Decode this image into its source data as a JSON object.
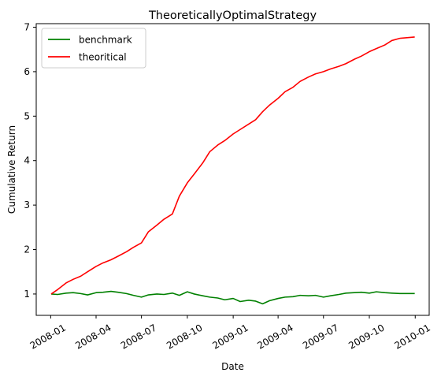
{
  "chart_data": {
    "type": "line",
    "title": "TheoreticallyOptimalStrategy",
    "xlabel": "Date",
    "ylabel": "Cumulative Return",
    "xlim": [
      "2007-12-03",
      "2010-01-29"
    ],
    "ylim": [
      0.52,
      7.08
    ],
    "x_ticks": [
      "2008-01",
      "2008-04",
      "2008-07",
      "2008-10",
      "2009-01",
      "2009-04",
      "2009-07",
      "2009-10",
      "2010-01"
    ],
    "y_ticks": [
      1,
      2,
      3,
      4,
      5,
      6,
      7
    ],
    "grid": false,
    "legend": "top-left",
    "series": [
      {
        "name": "benchmark",
        "color": "#008000",
        "x": [
          "2008-01-02",
          "2008-01-15",
          "2008-02-01",
          "2008-02-15",
          "2008-03-01",
          "2008-03-15",
          "2008-04-01",
          "2008-04-15",
          "2008-05-01",
          "2008-05-15",
          "2008-06-01",
          "2008-06-15",
          "2008-07-01",
          "2008-07-15",
          "2008-08-01",
          "2008-08-15",
          "2008-09-01",
          "2008-09-15",
          "2008-10-01",
          "2008-10-15",
          "2008-11-01",
          "2008-11-15",
          "2008-12-01",
          "2008-12-15",
          "2009-01-01",
          "2009-01-15",
          "2009-02-01",
          "2009-02-15",
          "2009-03-01",
          "2009-03-15",
          "2009-04-01",
          "2009-04-15",
          "2009-05-01",
          "2009-05-15",
          "2009-06-01",
          "2009-06-15",
          "2009-07-01",
          "2009-07-15",
          "2009-08-01",
          "2009-08-15",
          "2009-09-01",
          "2009-09-15",
          "2009-10-01",
          "2009-10-15",
          "2009-11-01",
          "2009-11-15",
          "2009-12-01",
          "2009-12-31"
        ],
        "values": [
          1.0,
          0.99,
          1.02,
          1.03,
          1.01,
          0.98,
          1.03,
          1.04,
          1.06,
          1.04,
          1.01,
          0.97,
          0.93,
          0.98,
          1.0,
          0.99,
          1.02,
          0.97,
          1.05,
          1.0,
          0.96,
          0.93,
          0.91,
          0.87,
          0.9,
          0.83,
          0.86,
          0.84,
          0.78,
          0.85,
          0.9,
          0.93,
          0.94,
          0.97,
          0.96,
          0.97,
          0.93,
          0.96,
          0.99,
          1.02,
          1.03,
          1.04,
          1.02,
          1.05,
          1.03,
          1.02,
          1.01,
          1.01
        ]
      },
      {
        "name": "theoritical",
        "color": "#ff0000",
        "x": [
          "2008-01-02",
          "2008-01-15",
          "2008-02-01",
          "2008-02-15",
          "2008-03-01",
          "2008-03-15",
          "2008-04-01",
          "2008-04-15",
          "2008-05-01",
          "2008-05-15",
          "2008-06-01",
          "2008-06-15",
          "2008-07-01",
          "2008-07-15",
          "2008-08-01",
          "2008-08-15",
          "2008-09-01",
          "2008-09-15",
          "2008-10-01",
          "2008-10-15",
          "2008-11-01",
          "2008-11-15",
          "2008-12-01",
          "2008-12-15",
          "2009-01-01",
          "2009-01-15",
          "2009-02-01",
          "2009-02-15",
          "2009-03-01",
          "2009-03-15",
          "2009-04-01",
          "2009-04-15",
          "2009-05-01",
          "2009-05-15",
          "2009-06-01",
          "2009-06-15",
          "2009-07-01",
          "2009-07-15",
          "2009-08-01",
          "2009-08-15",
          "2009-09-01",
          "2009-09-15",
          "2009-10-01",
          "2009-10-15",
          "2009-11-01",
          "2009-11-15",
          "2009-12-01",
          "2009-12-31"
        ],
        "values": [
          1.0,
          1.1,
          1.25,
          1.33,
          1.4,
          1.5,
          1.62,
          1.7,
          1.77,
          1.85,
          1.95,
          2.05,
          2.15,
          2.4,
          2.55,
          2.68,
          2.8,
          3.2,
          3.5,
          3.7,
          3.95,
          4.2,
          4.35,
          4.45,
          4.6,
          4.7,
          4.82,
          4.92,
          5.1,
          5.25,
          5.4,
          5.55,
          5.65,
          5.78,
          5.88,
          5.95,
          6.0,
          6.06,
          6.12,
          6.18,
          6.28,
          6.35,
          6.45,
          6.52,
          6.6,
          6.7,
          6.75,
          6.78
        ]
      }
    ]
  }
}
